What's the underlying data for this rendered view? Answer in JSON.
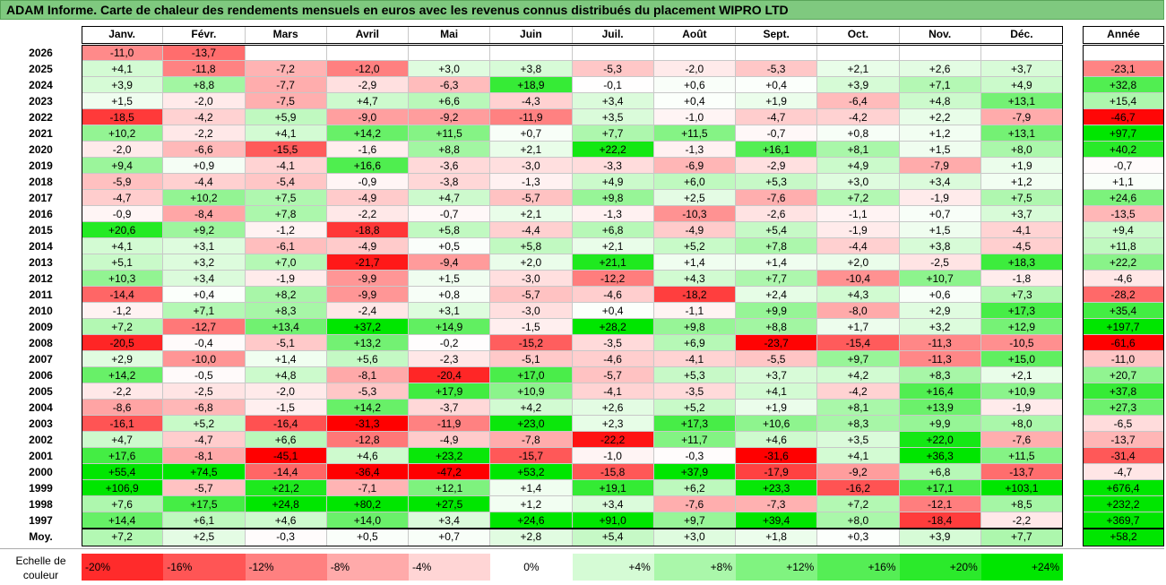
{
  "title": "ADAM Informe. Carte de chaleur des rendements mensuels en euros avec les revenus connus distribués du placement WIPRO LTD",
  "chart_data": {
    "type": "heatmap",
    "months": [
      "Janv.",
      "Févr.",
      "Mars",
      "Avril",
      "Mai",
      "Juin",
      "Juil.",
      "Août",
      "Sept.",
      "Oct.",
      "Nov.",
      "Déc."
    ],
    "year_col_label": "Année",
    "rows": [
      {
        "year": "2026",
        "values": [
          -11.0,
          -13.7,
          null,
          null,
          null,
          null,
          null,
          null,
          null,
          null,
          null,
          null
        ],
        "total": null
      },
      {
        "year": "2025",
        "values": [
          4.1,
          -11.8,
          -7.2,
          -12.0,
          3.0,
          3.8,
          -5.3,
          -2.0,
          -5.3,
          2.1,
          2.6,
          3.7
        ],
        "total": -23.1
      },
      {
        "year": "2024",
        "values": [
          3.9,
          8.8,
          -7.7,
          -2.9,
          -6.3,
          18.9,
          -0.1,
          0.6,
          0.4,
          3.9,
          7.1,
          4.9
        ],
        "total": 32.8
      },
      {
        "year": "2023",
        "values": [
          1.5,
          -2.0,
          -7.5,
          4.7,
          6.6,
          -4.3,
          3.4,
          0.4,
          1.9,
          -6.4,
          4.8,
          13.1
        ],
        "total": 15.4
      },
      {
        "year": "2022",
        "values": [
          -18.5,
          -4.2,
          5.9,
          -9.0,
          -9.2,
          -11.9,
          3.5,
          -1.0,
          -4.7,
          -4.2,
          2.2,
          -7.9
        ],
        "total": -46.7
      },
      {
        "year": "2021",
        "values": [
          10.2,
          -2.2,
          4.1,
          14.2,
          11.5,
          0.7,
          7.7,
          11.5,
          -0.7,
          0.8,
          1.2,
          13.1
        ],
        "total": 97.7
      },
      {
        "year": "2020",
        "values": [
          -2.0,
          -6.6,
          -15.5,
          -1.6,
          8.8,
          2.1,
          22.2,
          -1.3,
          16.1,
          8.1,
          1.5,
          8.0
        ],
        "total": 40.2
      },
      {
        "year": "2019",
        "values": [
          9.4,
          0.9,
          -4.1,
          16.6,
          -3.6,
          -3.0,
          -3.3,
          -6.9,
          -2.9,
          4.9,
          -7.9,
          1.9
        ],
        "total": -0.7
      },
      {
        "year": "2018",
        "values": [
          -5.9,
          -4.4,
          -5.4,
          -0.9,
          -3.8,
          -1.3,
          4.9,
          6.0,
          5.3,
          3.0,
          3.4,
          1.2
        ],
        "total": 1.1
      },
      {
        "year": "2017",
        "values": [
          -4.7,
          10.2,
          7.5,
          -4.9,
          4.7,
          -5.7,
          9.8,
          2.5,
          -7.6,
          7.2,
          -1.9,
          7.5
        ],
        "total": 24.6
      },
      {
        "year": "2016",
        "values": [
          -0.9,
          -8.4,
          7.8,
          -2.2,
          -0.7,
          2.1,
          -1.3,
          -10.3,
          -2.6,
          -1.1,
          0.7,
          3.7
        ],
        "total": -13.5
      },
      {
        "year": "2015",
        "values": [
          20.6,
          9.2,
          -1.2,
          -18.8,
          5.8,
          -4.4,
          6.8,
          -4.9,
          5.4,
          -1.9,
          1.5,
          -4.1
        ],
        "total": 9.4
      },
      {
        "year": "2014",
        "values": [
          4.1,
          3.1,
          -6.1,
          -4.9,
          0.5,
          5.8,
          2.1,
          5.2,
          7.8,
          -4.4,
          3.8,
          -4.5
        ],
        "total": 11.8
      },
      {
        "year": "2013",
        "values": [
          5.1,
          3.2,
          7.0,
          -21.7,
          -9.4,
          2.0,
          21.1,
          1.4,
          1.4,
          2.0,
          -2.5,
          18.3
        ],
        "total": 22.2
      },
      {
        "year": "2012",
        "values": [
          10.3,
          3.4,
          -1.9,
          -9.9,
          1.5,
          -3.0,
          -12.2,
          4.3,
          7.7,
          -10.4,
          10.7,
          -1.8
        ],
        "total": -4.6
      },
      {
        "year": "2011",
        "values": [
          -14.4,
          0.4,
          8.2,
          -9.9,
          0.8,
          -5.7,
          -4.6,
          -18.2,
          2.4,
          4.3,
          0.6,
          7.3
        ],
        "total": -28.2
      },
      {
        "year": "2010",
        "values": [
          -1.2,
          7.1,
          8.3,
          -2.4,
          3.1,
          -3.0,
          0.4,
          -1.1,
          9.9,
          -8.0,
          2.9,
          17.3
        ],
        "total": 35.4
      },
      {
        "year": "2009",
        "values": [
          7.2,
          -12.7,
          13.4,
          37.2,
          14.9,
          -1.5,
          28.2,
          9.8,
          8.8,
          1.7,
          3.2,
          12.9
        ],
        "total": 197.7
      },
      {
        "year": "2008",
        "values": [
          -20.5,
          -0.4,
          -5.1,
          13.2,
          -0.2,
          -15.2,
          -3.5,
          6.9,
          -23.7,
          -15.4,
          -11.3,
          -10.5
        ],
        "total": -61.6
      },
      {
        "year": "2007",
        "values": [
          2.9,
          -10.0,
          1.4,
          5.6,
          -2.3,
          -5.1,
          -4.6,
          -4.1,
          -5.5,
          9.7,
          -11.3,
          15.0
        ],
        "total": -11.0
      },
      {
        "year": "2006",
        "values": [
          14.2,
          -0.5,
          4.8,
          -8.1,
          -20.4,
          17.0,
          -5.7,
          5.3,
          3.7,
          4.2,
          8.3,
          2.1
        ],
        "total": 20.7
      },
      {
        "year": "2005",
        "values": [
          -2.2,
          -2.5,
          -2.0,
          -5.3,
          17.9,
          10.9,
          -4.1,
          -3.5,
          4.1,
          -4.2,
          16.4,
          10.9
        ],
        "total": 37.8
      },
      {
        "year": "2004",
        "values": [
          -8.6,
          -6.8,
          -1.5,
          14.2,
          -3.7,
          4.2,
          2.6,
          5.2,
          1.9,
          8.1,
          13.9,
          -1.9
        ],
        "total": 27.3
      },
      {
        "year": "2003",
        "values": [
          -16.1,
          5.2,
          -16.4,
          -31.3,
          -11.9,
          23.0,
          2.3,
          17.3,
          10.6,
          8.3,
          9.9,
          8.0
        ],
        "total": -6.5
      },
      {
        "year": "2002",
        "values": [
          4.7,
          -4.7,
          6.6,
          -12.8,
          -4.9,
          -7.8,
          -22.2,
          11.7,
          4.6,
          3.5,
          22.0,
          -7.6
        ],
        "total": -13.7
      },
      {
        "year": "2001",
        "values": [
          17.6,
          -8.1,
          -45.1,
          4.6,
          23.2,
          -15.7,
          -1.0,
          -0.3,
          -31.6,
          4.1,
          36.3,
          11.5
        ],
        "total": -31.4
      },
      {
        "year": "2000",
        "values": [
          55.4,
          74.5,
          -14.4,
          -36.4,
          -47.2,
          53.2,
          -15.8,
          37.9,
          -17.9,
          -9.2,
          6.8,
          -13.7
        ],
        "total": -4.7
      },
      {
        "year": "1999",
        "values": [
          106.9,
          -5.7,
          21.2,
          -7.1,
          12.1,
          1.4,
          19.1,
          6.2,
          23.3,
          -16.2,
          17.1,
          103.1
        ],
        "total": 676.4
      },
      {
        "year": "1998",
        "values": [
          7.6,
          17.5,
          24.8,
          80.2,
          27.5,
          1.2,
          3.4,
          -7.6,
          -7.3,
          7.2,
          -12.1,
          8.5
        ],
        "total": 232.2
      },
      {
        "year": "1997",
        "values": [
          14.4,
          6.1,
          4.6,
          14.0,
          3.4,
          24.6,
          91.0,
          9.7,
          39.4,
          8.0,
          -18.4,
          -2.2
        ],
        "total": 369.7
      }
    ],
    "average": {
      "label": "Moy.",
      "values": [
        7.2,
        2.5,
        -0.3,
        0.5,
        0.7,
        2.8,
        5.4,
        3.0,
        1.8,
        0.3,
        3.9,
        7.7
      ],
      "total": 58.2
    },
    "scale": {
      "label_line1": "Echelle de",
      "label_line2": "couleur",
      "labels": [
        "-20%",
        "-16%",
        "-12%",
        "-8%",
        "-4%",
        "0%",
        "+4%",
        "+8%",
        "+12%",
        "+16%",
        "+20%",
        "+24%"
      ]
    },
    "colors": {
      "neg_max": "#ff0000",
      "pos_max": "#00e000",
      "neutral": "#ffffff",
      "title_bg": "#7fc97f"
    }
  }
}
